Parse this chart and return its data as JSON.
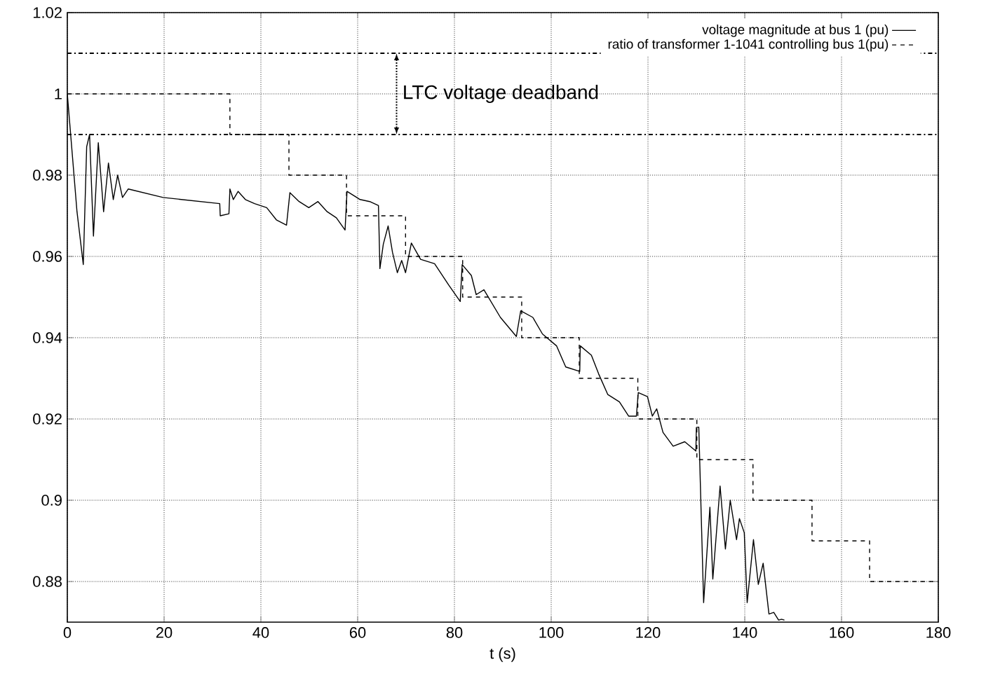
{
  "chart_data": {
    "type": "line",
    "xlabel": "t (s)",
    "xlim": [
      0,
      180
    ],
    "xticks": [
      0,
      20,
      40,
      60,
      80,
      100,
      120,
      140,
      160,
      180
    ],
    "ylim": [
      0.87,
      1.02
    ],
    "yticks": [
      0.88,
      0.9,
      0.92,
      0.94,
      0.96,
      0.98,
      1,
      1.02
    ],
    "grid": true,
    "legend": "top right",
    "series": [
      {
        "name": "voltage magnitude at bus 1 (pu)",
        "color": "#000000",
        "line_style": "solid",
        "x": [
          0,
          0.3,
          1.0,
          1.7,
          2.0,
          2.5,
          3.3,
          4.0,
          4.6,
          5.4,
          6.4,
          7.5,
          8.5,
          9.5,
          10.4,
          11.4,
          12.6,
          19.8,
          31.5,
          31.6,
          33.4,
          33.6,
          34.3,
          35.3,
          36.8,
          38.7,
          41.2,
          43.2,
          45.3,
          46.0,
          47.9,
          49.9,
          51.8,
          53.7,
          55.6,
          57.4,
          57.8,
          60.5,
          62.5,
          64.3,
          64.6,
          65.3,
          66.3,
          67.2,
          68.2,
          69.1,
          69.9,
          71.1,
          73.0,
          75.9,
          78.8,
          81.2,
          81.6,
          83.5,
          84.5,
          86.1,
          89.5,
          92.8,
          93.7,
          96.2,
          98.2,
          101.1,
          103.0,
          105.9,
          106.0,
          108.3,
          109.8,
          111.7,
          114.1,
          116.0,
          117.6,
          118.0,
          119.9,
          120.9,
          121.8,
          123.1,
          125.2,
          127.6,
          129.9,
          130.0,
          130.5,
          131.5,
          132.8,
          133.4,
          134.9,
          136.0,
          137.0,
          138.3,
          138.9,
          139.2,
          139.9,
          140.5,
          141.8,
          142.8,
          143.8,
          145.0,
          146.0,
          147.0,
          147.6,
          148.2
        ],
        "values": [
          1.0,
          null,
          null,
          null,
          0.971,
          null,
          0.958,
          0.987,
          0.99,
          0.965,
          0.988,
          0.971,
          0.983,
          0.974,
          0.98,
          0.9745,
          0.9766,
          0.9745,
          0.973,
          0.97,
          0.9705,
          0.9766,
          0.974,
          0.976,
          0.974,
          0.973,
          0.972,
          0.969,
          0.9677,
          0.9757,
          0.9735,
          0.972,
          0.9735,
          0.971,
          0.9695,
          0.9665,
          0.976,
          0.974,
          0.9735,
          0.9725,
          0.957,
          0.963,
          0.9675,
          0.961,
          0.956,
          0.959,
          0.956,
          0.9633,
          0.9593,
          0.9582,
          0.953,
          0.9489,
          0.958,
          0.9553,
          0.9506,
          0.9518,
          0.945,
          0.9403,
          0.9466,
          0.945,
          0.9409,
          0.938,
          0.9328,
          0.9317,
          0.938,
          0.9357,
          0.9311,
          0.926,
          0.9242,
          0.9207,
          0.9207,
          0.9265,
          0.9255,
          0.9207,
          0.9225,
          0.9167,
          0.9133,
          0.9144,
          0.9121,
          0.9179,
          0.918,
          0.8748,
          0.8983,
          0.8806,
          0.9035,
          0.888,
          0.9,
          0.8903,
          0.8955,
          null,
          0.892,
          0.8748,
          0.8903,
          0.8793,
          0.8845,
          0.872,
          0.8724,
          0.8705,
          0.8707,
          0.8705
        ]
      },
      {
        "name": "ratio of transformer 1-1041 controlling bus 1(pu)",
        "type": "step",
        "color": "#000000",
        "line_style": "dashed",
        "x": [
          0,
          33.6,
          45.8,
          57.7,
          69.9,
          81.7,
          93.9,
          105.8,
          117.9,
          130.1,
          141.7,
          153.9,
          165.8,
          180
        ],
        "values": [
          1.0,
          0.99,
          0.98,
          0.97,
          0.96,
          0.95,
          0.94,
          0.93,
          0.92,
          0.91,
          0.9,
          0.89,
          0.88,
          0.88
        ]
      }
    ],
    "ref_lines": [
      {
        "axis": "y",
        "value": 1.01,
        "line_style": "dashdot"
      },
      {
        "axis": "y",
        "value": 0.99,
        "line_style": "dashdot"
      }
    ],
    "annotations": [
      "LTC voltage deadband"
    ]
  }
}
